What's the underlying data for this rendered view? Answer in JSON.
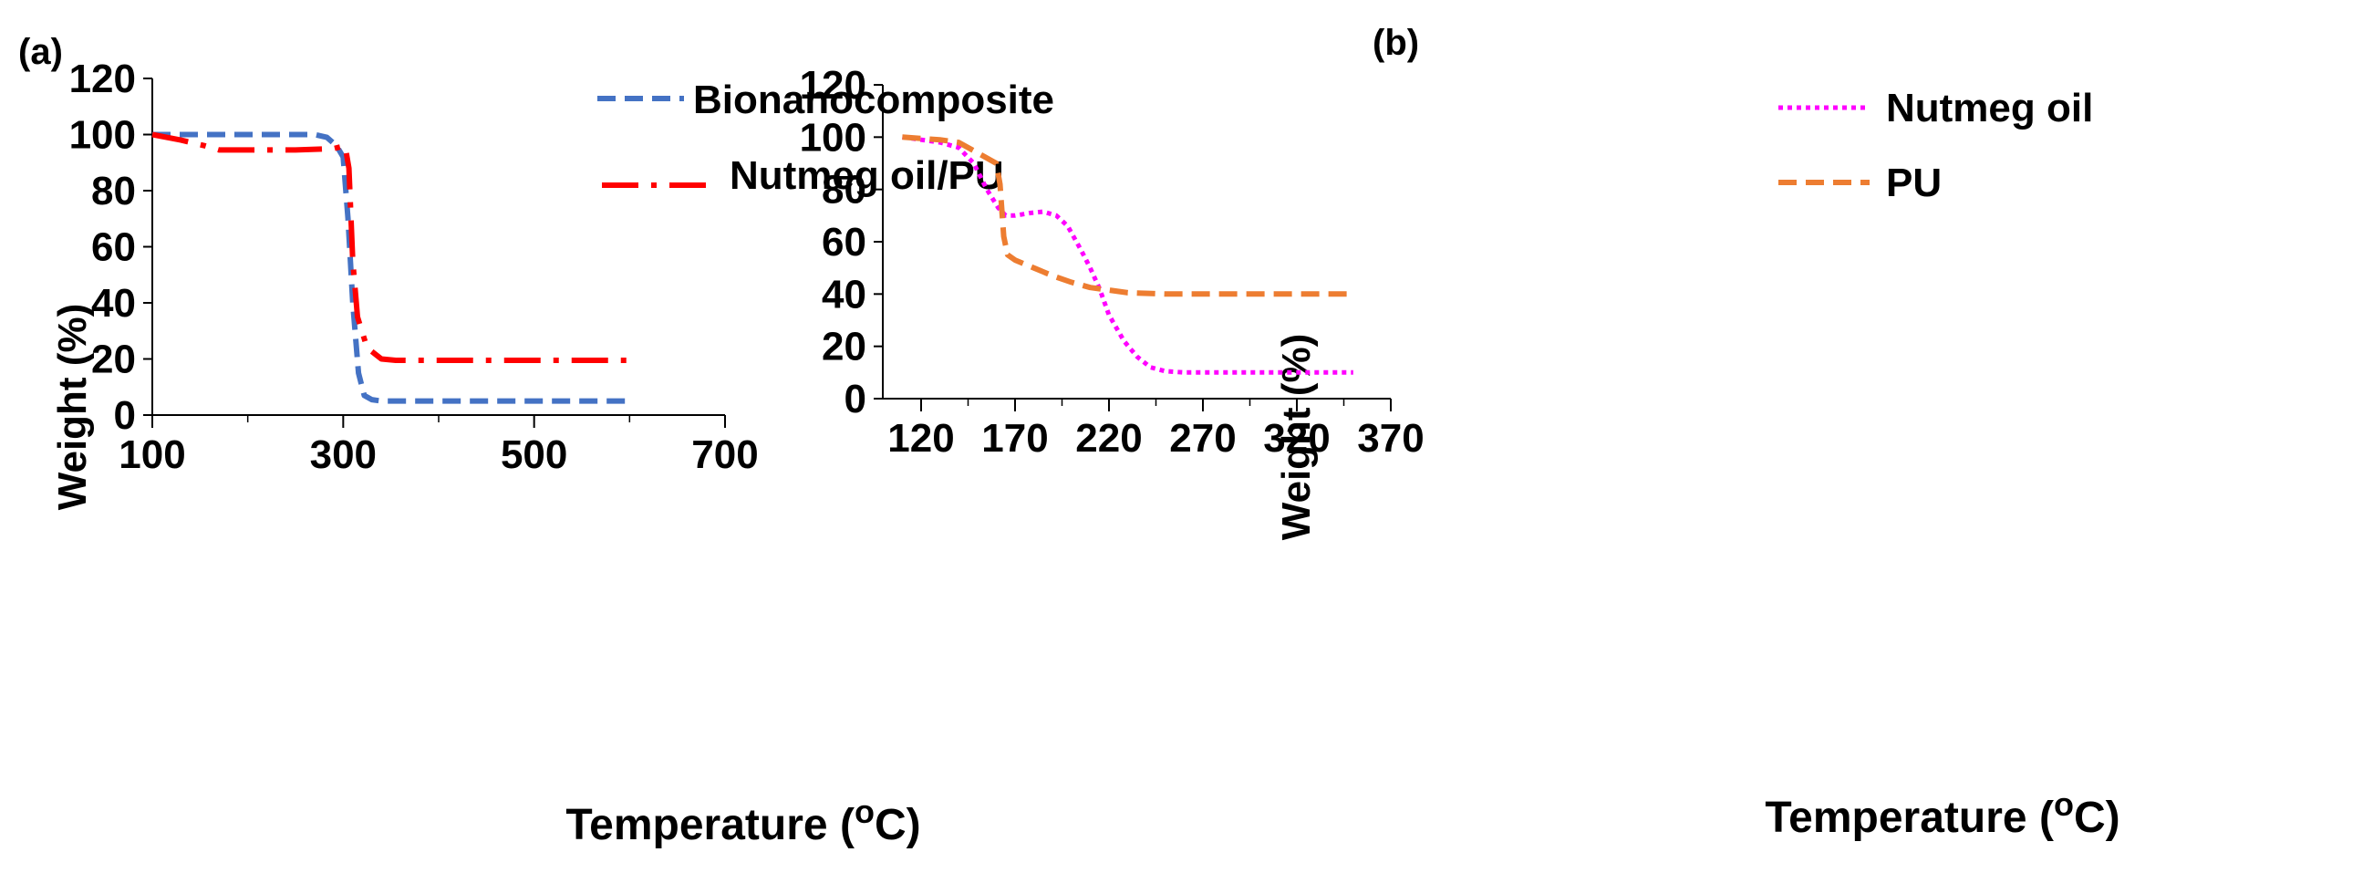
{
  "colors": {
    "axis": "#000000",
    "bionanocomposite": "#4472C4",
    "nutmeg_oil_pu": "#FF0000",
    "nutmeg_oil": "#FF00FF",
    "pu": "#ED7D31"
  },
  "chart_data": [
    {
      "panel": "(a)",
      "type": "line",
      "xlabel": "Temperature (",
      "xlabel_sup": "o",
      "xlabel_end": "C)",
      "ylabel": "Weight (%)",
      "xlim": [
        100,
        700
      ],
      "ylim": [
        0,
        120
      ],
      "xticks": [
        100,
        300,
        500,
        700
      ],
      "yticks": [
        0,
        20,
        40,
        60,
        80,
        100,
        120
      ],
      "legend_position": "top-right",
      "series": [
        {
          "name": "Bionanocomposite",
          "style": "dashed",
          "color": "#4472C4",
          "x": [
            100,
            200,
            270,
            283,
            293,
            300,
            305,
            310,
            316,
            322,
            330,
            340,
            400,
            500,
            600
          ],
          "y": [
            100,
            100,
            100,
            99,
            96,
            92,
            70,
            40,
            15,
            7,
            5.5,
            5,
            5,
            5,
            5
          ]
        },
        {
          "name": "Nutmeg oil/PU",
          "style": "dash-dot",
          "color": "#FF0000",
          "x": [
            100,
            130,
            155,
            170,
            180,
            250,
            290,
            302,
            306,
            310,
            315,
            325,
            340,
            355,
            400,
            500,
            600
          ],
          "y": [
            100,
            98,
            96,
            94.5,
            94.5,
            94.5,
            95,
            96,
            88,
            55,
            35,
            24,
            20,
            19.5,
            19.5,
            19.5,
            19.5
          ]
        }
      ]
    },
    {
      "panel": "(b)",
      "type": "line",
      "xlabel": "Temperature (",
      "xlabel_sup": "o",
      "xlabel_end": "C)",
      "ylabel": "Weight (%)",
      "xlim": [
        110,
        370
      ],
      "ylim": [
        0,
        120
      ],
      "xticks": [
        120,
        170,
        220,
        270,
        320,
        370
      ],
      "yticks": [
        0,
        20,
        40,
        60,
        80,
        100,
        120
      ],
      "legend_position": "top-right",
      "series": [
        {
          "name": "Nutmeg oil",
          "style": "dotted",
          "color": "#FF00FF",
          "x": [
            110,
            120,
            130,
            140,
            148,
            155,
            161,
            165,
            170,
            178,
            185,
            192,
            198,
            205,
            210,
            215,
            220,
            228,
            235,
            242,
            250,
            260,
            300,
            350
          ],
          "y": [
            100,
            99,
            98,
            96,
            90,
            80,
            73,
            70,
            70,
            71,
            71.5,
            70,
            66,
            57,
            50,
            42,
            32,
            22,
            16,
            12,
            10.5,
            10,
            10,
            10
          ]
        },
        {
          "name": "PU",
          "style": "dashed",
          "color": "#ED7D31",
          "x": [
            110,
            120,
            130,
            140,
            150,
            160,
            162,
            164,
            166,
            170,
            180,
            190,
            200,
            210,
            220,
            230,
            250,
            300,
            350
          ],
          "y": [
            100,
            99.5,
            99,
            98,
            94,
            90,
            82,
            62,
            55,
            53,
            50,
            47,
            44.5,
            42.5,
            41.5,
            40.5,
            40,
            40,
            40
          ]
        }
      ]
    }
  ]
}
